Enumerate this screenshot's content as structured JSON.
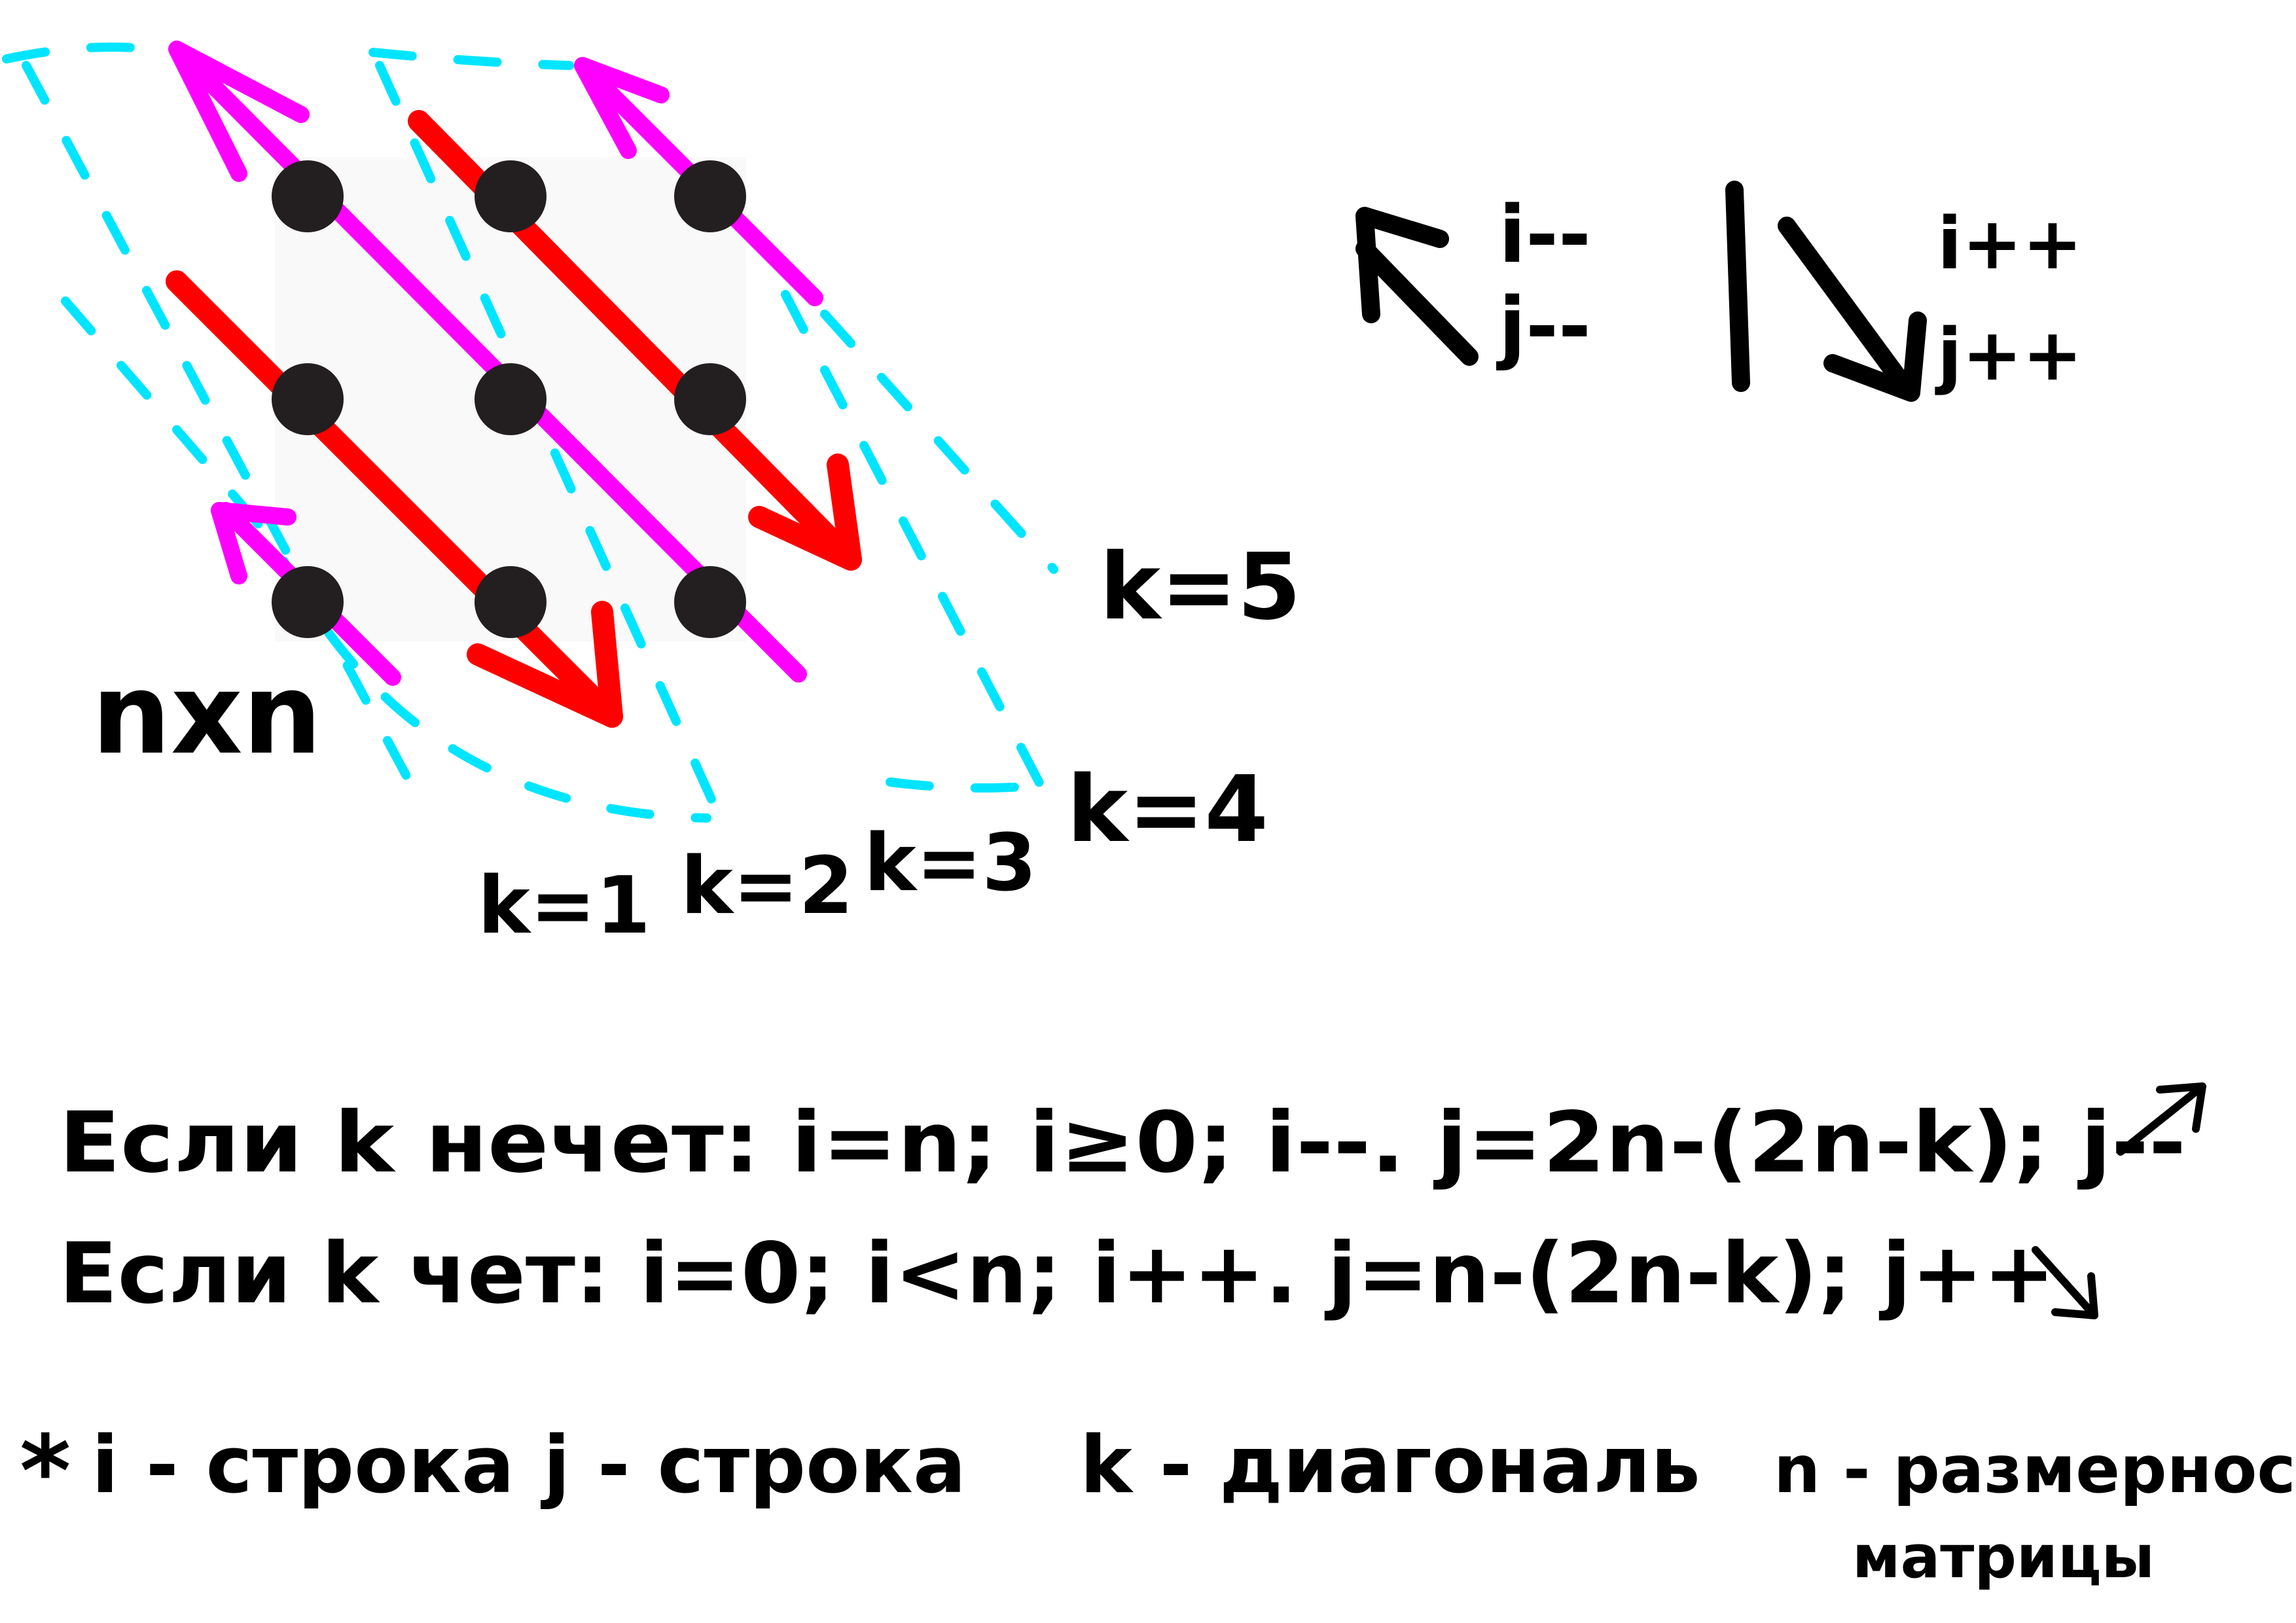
{
  "matrix": {
    "size_label": "nxn",
    "rows": 3,
    "cols": 3
  },
  "diagonal_labels": [
    "k=1",
    "k=2",
    "k=3",
    "k=4",
    "k=5"
  ],
  "legend": {
    "up_i": "i--",
    "up_j": "j--",
    "down_i": "i++",
    "down_j": "j++"
  },
  "rules": {
    "odd": "Если k нечет: i=n; i≥0; i--.  j=2n-(2n-k); j--",
    "even": "Если k чет: i=0; i<n; i++.  j=n-(2n-k); j++"
  },
  "definitions": {
    "prefix": "*",
    "i": "i - строка",
    "j": "j - строка",
    "k": "k - диагональ",
    "n_line1": "n - размерность",
    "n_line2": "матрицы"
  },
  "colors": {
    "dot": "#231f20",
    "magenta": "#ff00ff",
    "red": "#ff0000",
    "cyan": "#00e5ff",
    "ink": "#000000",
    "matrix_bg": "#f9f9f9"
  }
}
